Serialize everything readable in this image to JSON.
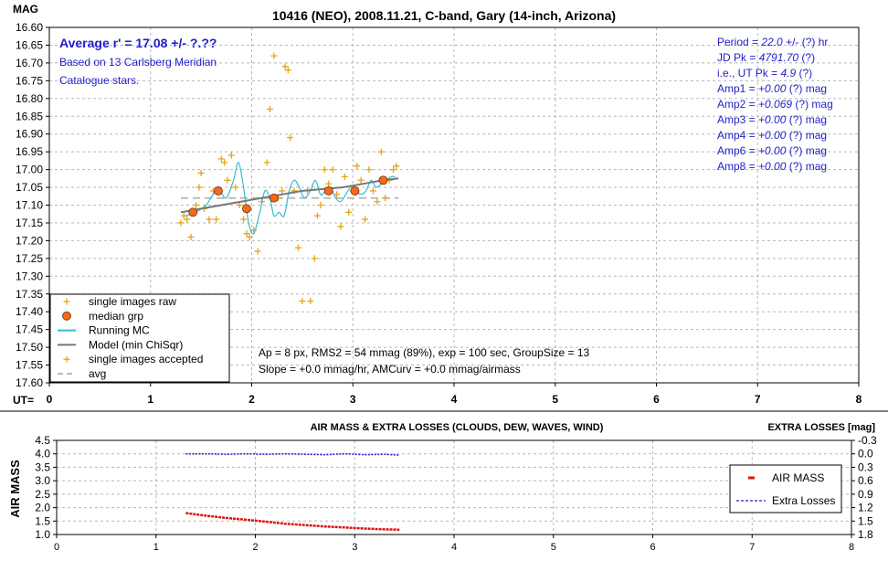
{
  "chart_data": [
    {
      "type": "scatter",
      "title": "10416 (NEO), 2008.11.21, C-band, Gary (14-inch, Arizona)",
      "ylabel": "MAG",
      "xlabel": "UT=",
      "xlim": [
        0,
        8
      ],
      "ylim": [
        16.6,
        17.6
      ],
      "y_inverted": true,
      "grid": true,
      "x_ticks": [
        "0",
        "1",
        "2",
        "3",
        "4",
        "5",
        "6",
        "7",
        "8"
      ],
      "y_ticks": [
        "16.60",
        "16.65",
        "16.70",
        "16.75",
        "16.80",
        "16.85",
        "16.90",
        "16.95",
        "17.00",
        "17.05",
        "17.10",
        "17.15",
        "17.20",
        "17.25",
        "17.30",
        "17.35",
        "17.40",
        "17.45",
        "17.50",
        "17.55",
        "17.60"
      ],
      "annotations": {
        "average": "Average r' = 17.08 +/- ?.??",
        "based_on_1": "Based on 13 Carlsberg Meridian",
        "based_on_2": "Catalogue stars.",
        "params": [
          {
            "label": "Period = ",
            "value": "22.0",
            "rest": "  +/- (?) hr"
          },
          {
            "label": "JD Pk = ",
            "value": "4791.70",
            "rest": "  (?)"
          },
          {
            "label": "i.e., UT Pk = ",
            "value": "4.9",
            "rest": "  (?)"
          },
          {
            "label": "Amp1 = ",
            "value": "+0.00",
            "rest": " (?) mag"
          },
          {
            "label": "Amp2 = ",
            "value": "+0.069",
            "rest": " (?) mag"
          },
          {
            "label": "Amp3 = ",
            "value": "+0.00",
            "rest": " (?) mag"
          },
          {
            "label": "Amp4 = ",
            "value": "+0.00",
            "rest": " (?) mag"
          },
          {
            "label": "Amp6 = ",
            "value": "+0.00",
            "rest": " (?) mag"
          },
          {
            "label": "Amp8 = ",
            "value": "+0.00",
            "rest": " (?) mag"
          }
        ],
        "info_line1": "Ap = 8 px, RMS2 = 54 mmag (89%), exp = 100 sec, GroupSize = 13",
        "info_line2": "Slope = +0.0 mmag/hr, AMCurv = +0.0 mmag/airmass"
      },
      "legend_position": "bottom-left",
      "legend": [
        {
          "label": "single images raw",
          "marker": "plus",
          "color": "#e8a317"
        },
        {
          "label": "median grp",
          "marker": "circle",
          "color": "#f26b1d"
        },
        {
          "label": "Running MC",
          "marker": "line",
          "color": "#33bbd6"
        },
        {
          "label": "Model (min ChiSqr)",
          "marker": "line",
          "color": "#777777"
        },
        {
          "label": "single images accepted",
          "marker": "plus",
          "color": "#e8a317"
        },
        {
          "label": "avg",
          "marker": "dash",
          "color": "#bbbbbb"
        }
      ],
      "colors": {
        "raw": "#e8a317",
        "median": "#f26b1d",
        "running": "#33bbd6",
        "model": "#777777",
        "avg": "#bbbbbb"
      },
      "series": [
        {
          "name": "single images raw",
          "x": [
            1.3,
            1.33,
            1.36,
            1.4,
            1.42,
            1.45,
            1.48,
            1.5,
            1.53,
            1.58,
            1.62,
            1.65,
            1.7,
            1.73,
            1.76,
            1.8,
            1.84,
            1.88,
            1.92,
            1.95,
            1.98,
            2.02,
            2.06,
            2.1,
            2.15,
            2.18,
            2.22,
            2.26,
            2.3,
            2.33,
            2.36,
            2.38,
            2.42,
            2.46,
            2.5,
            2.55,
            2.58,
            2.62,
            2.65,
            2.68,
            2.72,
            2.76,
            2.8,
            2.84,
            2.88,
            2.92,
            2.96,
            3.0,
            3.04,
            3.08,
            3.12,
            3.16,
            3.2,
            3.24,
            3.28,
            3.32,
            3.36,
            3.4,
            3.43
          ],
          "y": [
            17.15,
            17.13,
            17.14,
            17.19,
            17.12,
            17.1,
            17.05,
            17.01,
            17.11,
            17.14,
            17.06,
            17.14,
            16.97,
            16.98,
            17.03,
            16.96,
            17.05,
            17.1,
            17.14,
            17.18,
            17.19,
            17.17,
            17.23,
            17.09,
            16.98,
            16.83,
            16.68,
            17.08,
            17.06,
            16.71,
            16.72,
            16.91,
            17.06,
            17.22,
            17.37,
            17.06,
            17.37,
            17.25,
            17.13,
            17.1,
            17.0,
            17.04,
            17.0,
            17.07,
            17.16,
            17.02,
            17.12,
            17.06,
            16.99,
            17.03,
            17.14,
            17.0,
            17.06,
            17.09,
            16.95,
            17.08,
            17.03,
            17.0,
            16.99
          ]
        },
        {
          "name": "median grp",
          "x": [
            1.42,
            1.67,
            1.95,
            2.22,
            2.76,
            3.02,
            3.3
          ],
          "y": [
            17.12,
            17.06,
            17.11,
            17.08,
            17.06,
            17.06,
            17.03
          ]
        },
        {
          "name": "Running MC",
          "x": [
            1.35,
            1.45,
            1.55,
            1.62,
            1.68,
            1.75,
            1.82,
            1.87,
            1.92,
            1.97,
            2.02,
            2.08,
            2.13,
            2.18,
            2.22,
            2.27,
            2.32,
            2.37,
            2.42,
            2.47,
            2.52,
            2.58,
            2.63,
            2.68,
            2.73,
            2.78,
            2.83,
            2.88,
            2.93,
            2.98,
            3.03,
            3.08,
            3.13,
            3.18,
            3.23,
            3.28,
            3.33,
            3.38,
            3.42
          ],
          "y": [
            17.13,
            17.12,
            17.1,
            17.07,
            17.06,
            17.08,
            17.03,
            16.98,
            17.05,
            17.15,
            17.18,
            17.12,
            17.06,
            17.08,
            17.13,
            17.12,
            17.13,
            17.06,
            17.03,
            17.05,
            17.08,
            17.06,
            17.03,
            17.07,
            17.06,
            17.05,
            17.08,
            17.09,
            17.07,
            17.05,
            17.06,
            17.07,
            17.06,
            17.03,
            17.05,
            17.04,
            17.03,
            17.02,
            17.02
          ]
        },
        {
          "name": "Model (min ChiSqr)",
          "x": [
            1.3,
            1.5,
            1.7,
            1.9,
            2.1,
            2.3,
            2.5,
            2.7,
            2.9,
            3.1,
            3.3,
            3.45
          ],
          "y": [
            17.12,
            17.11,
            17.1,
            17.09,
            17.08,
            17.07,
            17.06,
            17.055,
            17.05,
            17.04,
            17.03,
            17.025
          ]
        },
        {
          "name": "avg",
          "x": [
            1.3,
            3.45
          ],
          "y": [
            17.08,
            17.08
          ]
        }
      ]
    },
    {
      "type": "line",
      "title": "AIR MASS & EXTRA LOSSES (CLOUDS, DEW, WAVES, WIND)",
      "ylabel": "AIR MASS",
      "y2label": "EXTRA LOSSES [mag]",
      "xlim": [
        0,
        8
      ],
      "ylim": [
        1.0,
        4.5
      ],
      "y2lim": [
        -0.3,
        1.8
      ],
      "y2_inverted": true,
      "x_ticks": [
        "0",
        "1",
        "2",
        "3",
        "4",
        "5",
        "6",
        "7",
        "8"
      ],
      "y_ticks": [
        "1.0",
        "1.5",
        "2.0",
        "2.5",
        "3.0",
        "3.5",
        "4.0",
        "4.5"
      ],
      "y2_ticks": [
        "-0.3",
        "0.0",
        "0.3",
        "0.6",
        "0.9",
        "1.2",
        "1.5",
        "1.8"
      ],
      "legend_position": "right",
      "legend": [
        {
          "label": "AIR MASS",
          "marker": "line",
          "color": "#dd1111"
        },
        {
          "label": "Extra Losses",
          "marker": "dash",
          "color": "#1f1fcc"
        }
      ],
      "series": [
        {
          "name": "AIR MASS",
          "x": [
            1.3,
            1.5,
            1.7,
            1.9,
            2.1,
            2.3,
            2.5,
            2.7,
            2.9,
            3.1,
            3.3,
            3.45
          ],
          "y": [
            1.8,
            1.7,
            1.62,
            1.55,
            1.48,
            1.4,
            1.35,
            1.3,
            1.26,
            1.22,
            1.19,
            1.18
          ]
        },
        {
          "name": "Extra Losses",
          "x": [
            1.3,
            1.5,
            1.7,
            1.9,
            2.1,
            2.3,
            2.5,
            2.7,
            2.9,
            3.1,
            3.3,
            3.45
          ],
          "y": [
            0.0,
            0.0,
            0.01,
            0.0,
            0.01,
            0.0,
            0.01,
            0.02,
            0.0,
            0.02,
            0.01,
            0.03
          ]
        }
      ]
    }
  ]
}
